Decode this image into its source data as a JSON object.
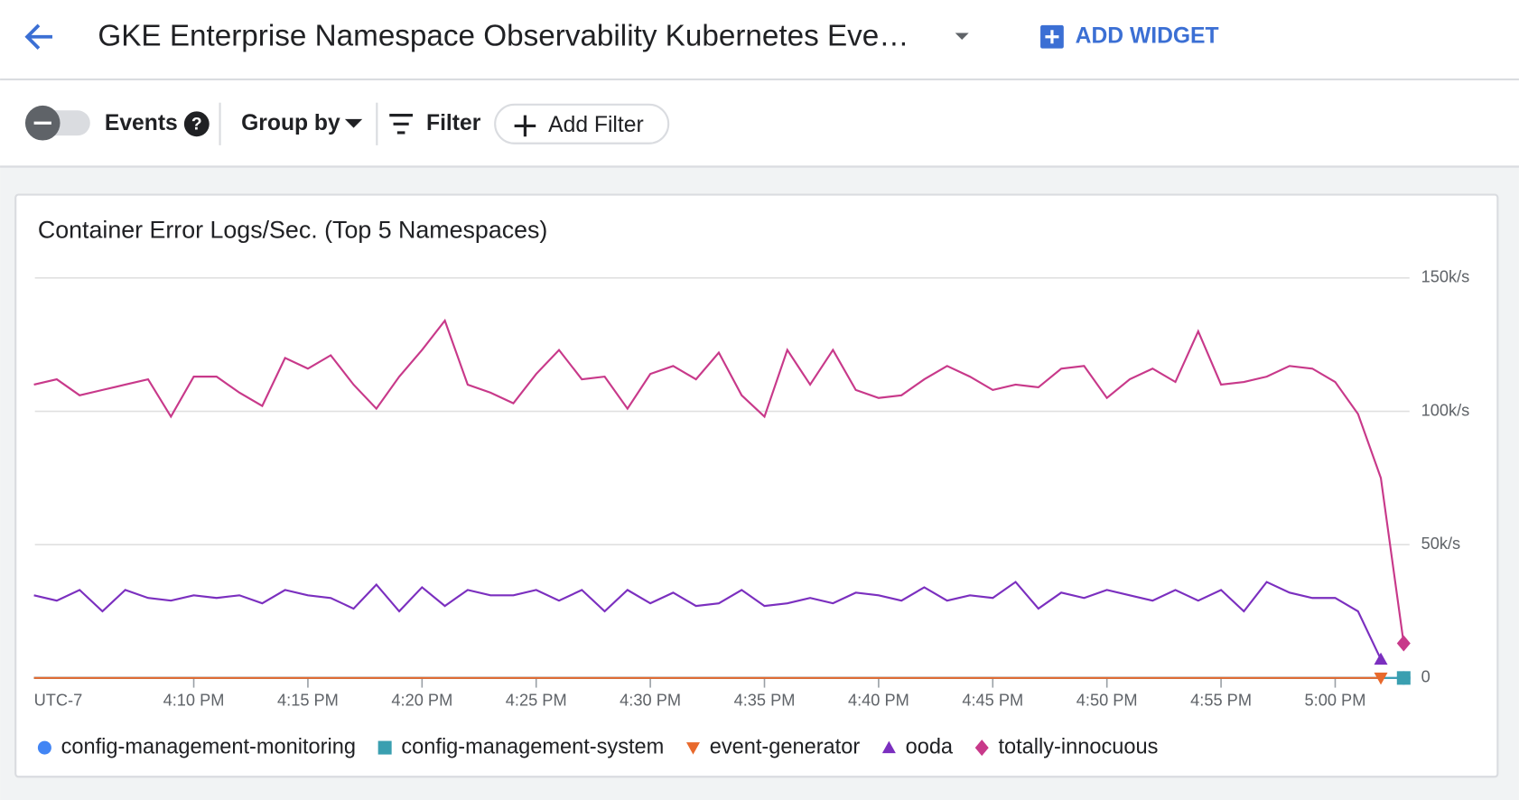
{
  "header": {
    "title": "GKE Enterprise Namespace Observability Kubernetes Eve…",
    "add_widget": "ADD WIDGET"
  },
  "toolbar": {
    "events": "Events",
    "group_by": "Group by",
    "filter": "Filter",
    "add_filter": "Add Filter"
  },
  "chart_data": {
    "type": "line",
    "title": "Container Error Logs/Sec. (Top 5 Namespaces)",
    "x_timezone_label": "UTC-7",
    "x": [
      "4:03 PM",
      "4:04 PM",
      "4:05 PM",
      "4:06 PM",
      "4:07 PM",
      "4:08 PM",
      "4:09 PM",
      "4:10 PM",
      "4:11 PM",
      "4:12 PM",
      "4:13 PM",
      "4:14 PM",
      "4:15 PM",
      "4:16 PM",
      "4:17 PM",
      "4:18 PM",
      "4:19 PM",
      "4:20 PM",
      "4:21 PM",
      "4:22 PM",
      "4:23 PM",
      "4:24 PM",
      "4:25 PM",
      "4:26 PM",
      "4:27 PM",
      "4:28 PM",
      "4:29 PM",
      "4:30 PM",
      "4:31 PM",
      "4:32 PM",
      "4:33 PM",
      "4:34 PM",
      "4:35 PM",
      "4:36 PM",
      "4:37 PM",
      "4:38 PM",
      "4:39 PM",
      "4:40 PM",
      "4:41 PM",
      "4:42 PM",
      "4:43 PM",
      "4:44 PM",
      "4:45 PM",
      "4:46 PM",
      "4:47 PM",
      "4:48 PM",
      "4:49 PM",
      "4:50 PM",
      "4:51 PM",
      "4:52 PM",
      "4:53 PM",
      "4:54 PM",
      "4:55 PM",
      "4:56 PM",
      "4:57 PM",
      "4:58 PM",
      "4:59 PM",
      "5:00 PM",
      "5:01 PM",
      "5:02 PM",
      "5:03 PM"
    ],
    "xlim": [
      "4:03 PM",
      "5:03 PM"
    ],
    "xticks": [
      "4:10 PM",
      "4:15 PM",
      "4:20 PM",
      "4:25 PM",
      "4:30 PM",
      "4:35 PM",
      "4:40 PM",
      "4:45 PM",
      "4:50 PM",
      "4:55 PM",
      "5:00 PM"
    ],
    "ylim": [
      0,
      150000
    ],
    "yticks": [
      0,
      {
        "value": 50000,
        "label": "50k/s"
      },
      {
        "value": 100000,
        "label": "100k/s"
      },
      {
        "value": 150000,
        "label": "150k/s"
      }
    ],
    "grid": true,
    "series": [
      {
        "name": "config-management-monitoring",
        "color": "#4285f4",
        "marker": "circle",
        "values": [
          0,
          0,
          0,
          0,
          0,
          0,
          0,
          0,
          0,
          0,
          0,
          0,
          0,
          0,
          0,
          0,
          0,
          0,
          0,
          0,
          0,
          0,
          0,
          0,
          0,
          0,
          0,
          0,
          0,
          0,
          0,
          0,
          0,
          0,
          0,
          0,
          0,
          0,
          0,
          0,
          0,
          0,
          0,
          0,
          0,
          0,
          0,
          0,
          0,
          0,
          0,
          0,
          0,
          0,
          0,
          0,
          0,
          0,
          0,
          0,
          0
        ]
      },
      {
        "name": "config-management-system",
        "color": "#3a9fb0",
        "marker": "square",
        "values": [
          0,
          0,
          0,
          0,
          0,
          0,
          0,
          0,
          0,
          0,
          0,
          0,
          0,
          0,
          0,
          0,
          0,
          0,
          0,
          0,
          0,
          0,
          0,
          0,
          0,
          0,
          0,
          0,
          0,
          0,
          0,
          0,
          0,
          0,
          0,
          0,
          0,
          0,
          0,
          0,
          0,
          0,
          0,
          0,
          0,
          0,
          0,
          0,
          0,
          0,
          0,
          0,
          0,
          0,
          0,
          0,
          0,
          0,
          0,
          0,
          0
        ]
      },
      {
        "name": "event-generator",
        "color": "#e8692c",
        "marker": "triangle-down",
        "values": [
          0,
          0,
          0,
          0,
          0,
          0,
          0,
          0,
          0,
          0,
          0,
          0,
          0,
          0,
          0,
          0,
          0,
          0,
          0,
          0,
          0,
          0,
          0,
          0,
          0,
          0,
          0,
          0,
          0,
          0,
          0,
          0,
          0,
          0,
          0,
          0,
          0,
          0,
          0,
          0,
          0,
          0,
          0,
          0,
          0,
          0,
          0,
          0,
          0,
          0,
          0,
          0,
          0,
          0,
          0,
          0,
          0,
          0,
          0,
          0,
          null
        ]
      },
      {
        "name": "ooda",
        "color": "#7b2fbf",
        "marker": "triangle",
        "values": [
          31000,
          29000,
          33000,
          25000,
          33000,
          30000,
          29000,
          31000,
          30000,
          31000,
          28000,
          33000,
          31000,
          30000,
          26000,
          35000,
          25000,
          34000,
          27000,
          33000,
          31000,
          31000,
          33000,
          29000,
          33000,
          25000,
          33000,
          28000,
          32000,
          27000,
          28000,
          33000,
          27000,
          28000,
          30000,
          28000,
          32000,
          31000,
          29000,
          34000,
          29000,
          31000,
          30000,
          36000,
          26000,
          32000,
          30000,
          33000,
          31000,
          29000,
          33000,
          29000,
          33000,
          25000,
          36000,
          32000,
          30000,
          30000,
          25000,
          7000,
          null
        ]
      },
      {
        "name": "totally-innocuous",
        "color": "#c8398a",
        "marker": "diamond",
        "values": [
          110000,
          112000,
          106000,
          108000,
          110000,
          112000,
          98000,
          113000,
          113000,
          107000,
          102000,
          120000,
          116000,
          121000,
          110000,
          101000,
          113000,
          123000,
          134000,
          110000,
          107000,
          103000,
          114000,
          123000,
          112000,
          113000,
          101000,
          114000,
          117000,
          112000,
          122000,
          106000,
          98000,
          123000,
          110000,
          123000,
          108000,
          105000,
          106000,
          112000,
          117000,
          113000,
          108000,
          110000,
          109000,
          116000,
          117000,
          105000,
          112000,
          116000,
          111000,
          130000,
          110000,
          111000,
          113000,
          117000,
          116000,
          111000,
          99000,
          75000,
          13000
        ]
      }
    ]
  }
}
